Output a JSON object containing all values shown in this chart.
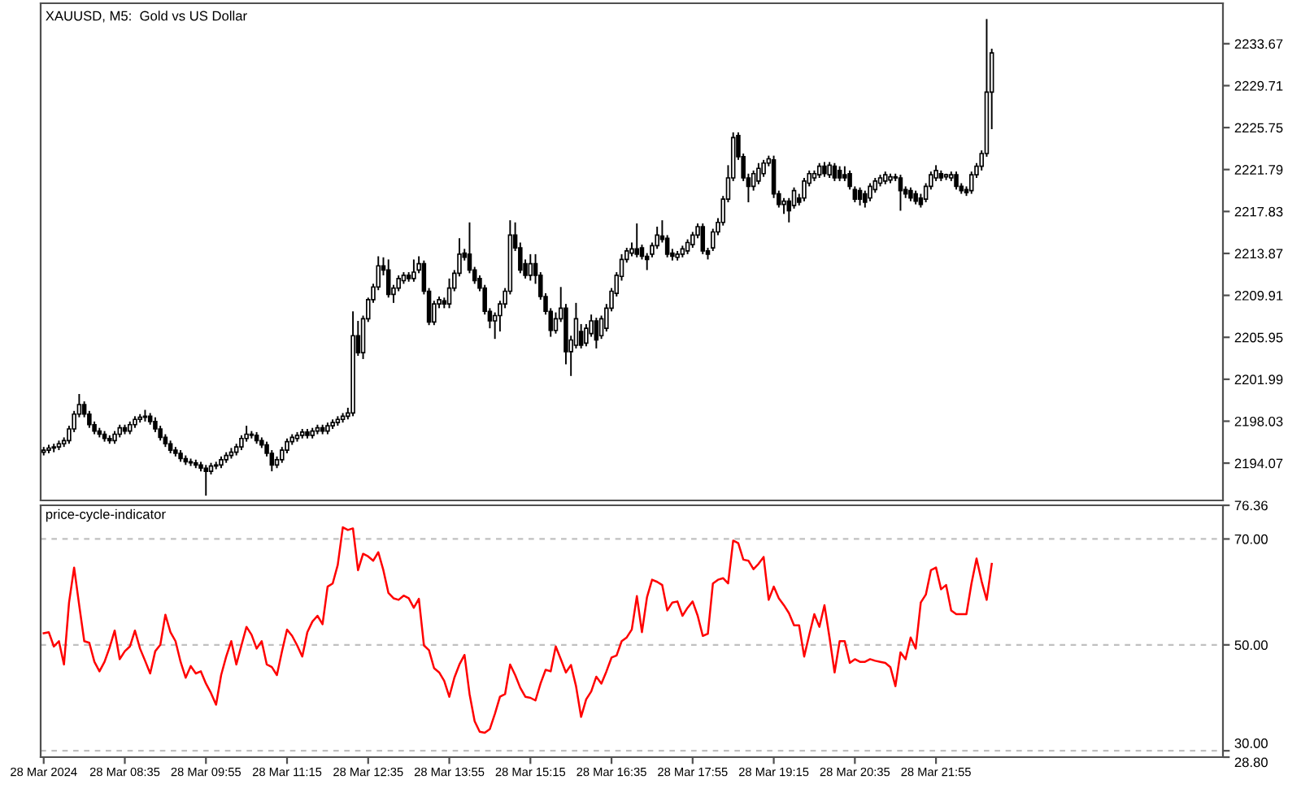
{
  "chart_data": [
    {
      "type": "candlestick",
      "title": "XAUUSD, M5:  Gold vs US Dollar",
      "color": "#000000",
      "tick_labels": "y",
      "xlim": [
        "2024-03-28T07:12",
        "2024-03-29T02:38"
      ],
      "ylim": [
        2190.55,
        2237.49
      ],
      "yticks": [
        2194.07,
        2198.03,
        2201.99,
        2205.95,
        2209.91,
        2213.87,
        2217.83,
        2221.79,
        2225.75,
        2229.71,
        2233.67
      ],
      "x": [
        "2024-03-28T07:15",
        "2024-03-28T07:20",
        "2024-03-28T07:25",
        "2024-03-28T07:30",
        "2024-03-28T07:35",
        "2024-03-28T07:40",
        "2024-03-28T07:45",
        "2024-03-28T07:50",
        "2024-03-28T07:55",
        "2024-03-28T08:00",
        "2024-03-28T08:05",
        "2024-03-28T08:10",
        "2024-03-28T08:15",
        "2024-03-28T08:20",
        "2024-03-28T08:25",
        "2024-03-28T08:30",
        "2024-03-28T08:35",
        "2024-03-28T08:40",
        "2024-03-28T08:45",
        "2024-03-28T08:50",
        "2024-03-28T08:55",
        "2024-03-28T09:00",
        "2024-03-28T09:05",
        "2024-03-28T09:10",
        "2024-03-28T09:15",
        "2024-03-28T09:20",
        "2024-03-28T09:25",
        "2024-03-28T09:30",
        "2024-03-28T09:35",
        "2024-03-28T09:40",
        "2024-03-28T09:45",
        "2024-03-28T09:50",
        "2024-03-28T09:55",
        "2024-03-28T10:00",
        "2024-03-28T10:05",
        "2024-03-28T10:10",
        "2024-03-28T10:15",
        "2024-03-28T10:20",
        "2024-03-28T10:25",
        "2024-03-28T10:30",
        "2024-03-28T10:35",
        "2024-03-28T10:40",
        "2024-03-28T10:45",
        "2024-03-28T10:50",
        "2024-03-28T10:55",
        "2024-03-28T11:00",
        "2024-03-28T11:05",
        "2024-03-28T11:10",
        "2024-03-28T11:15",
        "2024-03-28T11:20",
        "2024-03-28T11:25",
        "2024-03-28T11:30",
        "2024-03-28T11:35",
        "2024-03-28T11:40",
        "2024-03-28T11:45",
        "2024-03-28T11:50",
        "2024-03-28T11:55",
        "2024-03-28T12:00",
        "2024-03-28T12:05",
        "2024-03-28T12:10",
        "2024-03-28T12:15",
        "2024-03-28T12:20",
        "2024-03-28T12:25",
        "2024-03-28T12:30",
        "2024-03-28T12:35",
        "2024-03-28T12:40",
        "2024-03-28T12:45",
        "2024-03-28T12:50",
        "2024-03-28T12:55",
        "2024-03-28T13:00",
        "2024-03-28T13:05",
        "2024-03-28T13:10",
        "2024-03-28T13:15",
        "2024-03-28T13:20",
        "2024-03-28T13:25",
        "2024-03-28T13:30",
        "2024-03-28T13:35",
        "2024-03-28T13:40",
        "2024-03-28T13:45",
        "2024-03-28T13:50",
        "2024-03-28T13:55",
        "2024-03-28T14:00",
        "2024-03-28T14:05",
        "2024-03-28T14:10",
        "2024-03-28T14:15",
        "2024-03-28T14:20",
        "2024-03-28T14:25",
        "2024-03-28T14:30",
        "2024-03-28T14:35",
        "2024-03-28T14:40",
        "2024-03-28T14:45",
        "2024-03-28T14:50",
        "2024-03-28T14:55",
        "2024-03-28T15:00",
        "2024-03-28T15:05",
        "2024-03-28T15:10",
        "2024-03-28T15:15",
        "2024-03-28T15:20",
        "2024-03-28T15:25",
        "2024-03-28T15:30",
        "2024-03-28T15:35",
        "2024-03-28T15:40",
        "2024-03-28T15:45",
        "2024-03-28T15:50",
        "2024-03-28T15:55",
        "2024-03-28T16:00",
        "2024-03-28T16:05",
        "2024-03-28T16:10",
        "2024-03-28T16:15",
        "2024-03-28T16:20",
        "2024-03-28T16:25",
        "2024-03-28T16:30",
        "2024-03-28T16:35",
        "2024-03-28T16:40",
        "2024-03-28T16:45",
        "2024-03-28T16:50",
        "2024-03-28T16:55",
        "2024-03-28T17:00",
        "2024-03-28T17:05",
        "2024-03-28T17:10",
        "2024-03-28T17:15",
        "2024-03-28T17:20",
        "2024-03-28T17:25",
        "2024-03-28T17:30",
        "2024-03-28T17:35",
        "2024-03-28T17:40",
        "2024-03-28T17:45",
        "2024-03-28T17:50",
        "2024-03-28T17:55",
        "2024-03-28T18:00",
        "2024-03-28T18:05",
        "2024-03-28T18:10",
        "2024-03-28T18:15",
        "2024-03-28T18:20",
        "2024-03-28T18:25",
        "2024-03-28T18:30",
        "2024-03-28T18:35",
        "2024-03-28T18:40",
        "2024-03-28T18:45",
        "2024-03-28T18:50",
        "2024-03-28T18:55",
        "2024-03-28T19:00",
        "2024-03-28T19:05",
        "2024-03-28T19:10",
        "2024-03-28T19:15",
        "2024-03-28T19:20",
        "2024-03-28T19:25",
        "2024-03-28T19:30",
        "2024-03-28T19:35",
        "2024-03-28T19:40",
        "2024-03-28T19:45",
        "2024-03-28T19:50",
        "2024-03-28T19:55",
        "2024-03-28T20:00",
        "2024-03-28T20:05",
        "2024-03-28T20:10",
        "2024-03-28T20:15",
        "2024-03-28T20:20",
        "2024-03-28T20:25",
        "2024-03-28T20:30",
        "2024-03-28T20:35",
        "2024-03-28T20:40",
        "2024-03-28T20:45",
        "2024-03-28T20:50",
        "2024-03-28T20:55",
        "2024-03-28T21:00",
        "2024-03-28T21:05",
        "2024-03-28T21:10",
        "2024-03-28T21:15",
        "2024-03-28T21:20",
        "2024-03-28T21:25",
        "2024-03-28T21:30",
        "2024-03-28T21:35",
        "2024-03-28T21:40",
        "2024-03-28T21:45",
        "2024-03-28T21:50",
        "2024-03-28T21:55",
        "2024-03-28T22:00",
        "2024-03-28T22:05",
        "2024-03-28T22:10",
        "2024-03-28T22:15",
        "2024-03-28T22:20",
        "2024-03-28T22:25",
        "2024-03-28T22:30",
        "2024-03-28T22:35",
        "2024-03-28T22:40",
        "2024-03-28T22:45",
        "2024-03-28T22:50"
      ],
      "ohlc": [
        [
          2195.1,
          2195.6,
          2194.8,
          2195.3
        ],
        [
          2195.3,
          2195.8,
          2195.0,
          2195.5
        ],
        [
          2195.5,
          2195.9,
          2195.1,
          2195.6
        ],
        [
          2195.6,
          2196.2,
          2195.3,
          2195.9
        ],
        [
          2195.9,
          2196.5,
          2195.6,
          2196.2
        ],
        [
          2196.2,
          2197.6,
          2195.9,
          2197.3
        ],
        [
          2197.3,
          2199.0,
          2197.0,
          2198.7
        ],
        [
          2198.7,
          2200.6,
          2198.4,
          2199.6
        ],
        [
          2199.6,
          2199.9,
          2198.4,
          2198.7
        ],
        [
          2198.7,
          2199.0,
          2197.4,
          2197.7
        ],
        [
          2197.7,
          2198.0,
          2196.8,
          2197.1
        ],
        [
          2197.1,
          2197.4,
          2196.5,
          2196.8
        ],
        [
          2196.8,
          2197.1,
          2196.1,
          2196.4
        ],
        [
          2196.4,
          2196.7,
          2195.9,
          2196.2
        ],
        [
          2196.2,
          2197.1,
          2195.9,
          2196.8
        ],
        [
          2196.8,
          2197.7,
          2196.5,
          2197.4
        ],
        [
          2197.4,
          2197.7,
          2196.8,
          2197.1
        ],
        [
          2197.1,
          2198.0,
          2196.8,
          2197.7
        ],
        [
          2197.7,
          2198.5,
          2197.4,
          2198.2
        ],
        [
          2198.2,
          2198.7,
          2197.9,
          2198.4
        ],
        [
          2198.4,
          2199.1,
          2198.0,
          2198.5
        ],
        [
          2198.5,
          2198.8,
          2197.7,
          2198.0
        ],
        [
          2198.0,
          2198.4,
          2197.0,
          2197.3
        ],
        [
          2197.3,
          2197.6,
          2196.2,
          2196.5
        ],
        [
          2196.5,
          2196.8,
          2195.6,
          2195.9
        ],
        [
          2195.9,
          2196.2,
          2195.0,
          2195.3
        ],
        [
          2195.3,
          2195.6,
          2194.7,
          2195.0
        ],
        [
          2195.0,
          2195.3,
          2194.2,
          2194.5
        ],
        [
          2194.5,
          2194.8,
          2193.9,
          2194.2
        ],
        [
          2194.2,
          2194.5,
          2193.8,
          2194.1
        ],
        [
          2194.1,
          2194.4,
          2193.6,
          2193.9
        ],
        [
          2193.9,
          2194.2,
          2193.3,
          2193.6
        ],
        [
          2193.6,
          2193.9,
          2191.0,
          2193.3
        ],
        [
          2193.3,
          2194.1,
          2193.0,
          2193.8
        ],
        [
          2193.8,
          2194.2,
          2193.5,
          2193.9
        ],
        [
          2193.9,
          2194.7,
          2193.6,
          2194.4
        ],
        [
          2194.4,
          2195.1,
          2194.1,
          2194.8
        ],
        [
          2194.8,
          2195.5,
          2194.5,
          2195.1
        ],
        [
          2195.1,
          2195.9,
          2194.8,
          2195.6
        ],
        [
          2195.6,
          2196.7,
          2195.3,
          2196.4
        ],
        [
          2196.4,
          2197.6,
          2196.1,
          2196.8
        ],
        [
          2196.8,
          2197.1,
          2196.4,
          2196.7
        ],
        [
          2196.7,
          2197.0,
          2195.9,
          2196.2
        ],
        [
          2196.2,
          2196.5,
          2195.5,
          2195.8
        ],
        [
          2195.8,
          2196.1,
          2194.7,
          2195.0
        ],
        [
          2195.0,
          2195.3,
          2193.3,
          2193.9
        ],
        [
          2193.9,
          2194.7,
          2193.6,
          2194.4
        ],
        [
          2194.4,
          2195.6,
          2194.1,
          2195.3
        ],
        [
          2195.3,
          2196.4,
          2195.0,
          2196.1
        ],
        [
          2196.1,
          2196.8,
          2195.8,
          2196.5
        ],
        [
          2196.4,
          2197.0,
          2196.1,
          2196.7
        ],
        [
          2196.7,
          2197.3,
          2196.4,
          2197.0
        ],
        [
          2197.0,
          2197.3,
          2196.4,
          2196.7
        ],
        [
          2196.7,
          2197.4,
          2196.4,
          2197.1
        ],
        [
          2197.1,
          2197.7,
          2196.8,
          2197.4
        ],
        [
          2197.4,
          2197.7,
          2196.8,
          2197.1
        ],
        [
          2197.1,
          2197.9,
          2196.8,
          2197.6
        ],
        [
          2197.6,
          2198.2,
          2197.3,
          2197.9
        ],
        [
          2197.9,
          2198.5,
          2197.6,
          2198.2
        ],
        [
          2198.2,
          2198.8,
          2197.9,
          2198.5
        ],
        [
          2198.5,
          2199.3,
          2198.2,
          2198.8
        ],
        [
          2198.8,
          2208.4,
          2198.5,
          2206.1
        ],
        [
          2206.1,
          2207.5,
          2204.2,
          2204.5
        ],
        [
          2204.5,
          2208.0,
          2203.9,
          2207.7
        ],
        [
          2207.7,
          2209.7,
          2207.4,
          2209.5
        ],
        [
          2209.5,
          2211.0,
          2209.2,
          2210.7
        ],
        [
          2210.7,
          2213.6,
          2210.4,
          2212.7
        ],
        [
          2212.7,
          2213.5,
          2211.8,
          2212.3
        ],
        [
          2212.3,
          2213.3,
          2209.7,
          2210.0
        ],
        [
          2210.0,
          2210.9,
          2209.2,
          2210.6
        ],
        [
          2210.6,
          2211.8,
          2210.3,
          2211.5
        ],
        [
          2211.3,
          2212.1,
          2211.0,
          2211.8
        ],
        [
          2211.8,
          2212.1,
          2211.2,
          2211.5
        ],
        [
          2211.5,
          2213.3,
          2211.2,
          2212.1
        ],
        [
          2212.3,
          2213.6,
          2212.0,
          2212.9
        ],
        [
          2212.9,
          2213.2,
          2210.0,
          2210.3
        ],
        [
          2210.3,
          2210.6,
          2207.1,
          2207.4
        ],
        [
          2207.4,
          2209.4,
          2207.1,
          2209.1
        ],
        [
          2209.1,
          2209.8,
          2208.7,
          2209.5
        ],
        [
          2209.4,
          2209.7,
          2208.7,
          2209.1
        ],
        [
          2209.1,
          2211.5,
          2208.7,
          2210.6
        ],
        [
          2210.6,
          2212.3,
          2210.3,
          2212.0
        ],
        [
          2212.0,
          2215.3,
          2211.7,
          2213.8
        ],
        [
          2213.9,
          2214.3,
          2213.2,
          2213.5
        ],
        [
          2213.8,
          2216.8,
          2212.0,
          2212.3
        ],
        [
          2212.3,
          2212.6,
          2211.0,
          2211.3
        ],
        [
          2211.5,
          2211.8,
          2210.3,
          2210.6
        ],
        [
          2210.6,
          2210.9,
          2208.1,
          2208.4
        ],
        [
          2208.4,
          2208.7,
          2206.8,
          2207.5
        ],
        [
          2207.5,
          2208.3,
          2205.8,
          2208.0
        ],
        [
          2208.0,
          2209.4,
          2206.5,
          2209.1
        ],
        [
          2209.1,
          2210.6,
          2208.7,
          2210.3
        ],
        [
          2210.3,
          2217.0,
          2210.0,
          2215.6
        ],
        [
          2215.6,
          2216.8,
          2214.1,
          2214.4
        ],
        [
          2214.4,
          2214.9,
          2212.0,
          2212.3
        ],
        [
          2212.9,
          2213.3,
          2211.5,
          2211.8
        ],
        [
          2211.8,
          2213.8,
          2211.3,
          2212.9
        ],
        [
          2212.9,
          2213.8,
          2211.0,
          2211.8
        ],
        [
          2211.8,
          2212.1,
          2209.5,
          2209.8
        ],
        [
          2209.8,
          2210.1,
          2208.1,
          2208.4
        ],
        [
          2208.4,
          2208.7,
          2206.0,
          2206.6
        ],
        [
          2206.6,
          2208.3,
          2206.3,
          2207.7
        ],
        [
          2207.7,
          2210.7,
          2207.4,
          2208.7
        ],
        [
          2208.7,
          2209.1,
          2203.4,
          2204.6
        ],
        [
          2204.6,
          2206.1,
          2202.3,
          2205.7
        ],
        [
          2205.2,
          2209.2,
          2204.9,
          2207.7
        ],
        [
          2206.5,
          2207.2,
          2204.9,
          2205.2
        ],
        [
          2205.4,
          2207.2,
          2205.1,
          2206.8
        ],
        [
          2206.3,
          2208.1,
          2206.0,
          2207.5
        ],
        [
          2207.5,
          2207.8,
          2204.9,
          2205.7
        ],
        [
          2206.1,
          2208.0,
          2205.8,
          2207.7
        ],
        [
          2206.8,
          2209.1,
          2206.5,
          2208.7
        ],
        [
          2208.7,
          2210.6,
          2208.4,
          2210.3
        ],
        [
          2210.1,
          2212.1,
          2209.8,
          2211.8
        ],
        [
          2211.7,
          2213.8,
          2211.3,
          2213.3
        ],
        [
          2213.3,
          2214.4,
          2213.0,
          2214.1
        ],
        [
          2213.9,
          2214.9,
          2213.6,
          2214.3
        ],
        [
          2214.3,
          2216.7,
          2213.5,
          2213.8
        ],
        [
          2214.4,
          2214.7,
          2213.3,
          2213.6
        ],
        [
          2213.6,
          2213.9,
          2212.3,
          2213.3
        ],
        [
          2213.8,
          2214.9,
          2213.5,
          2214.6
        ],
        [
          2214.6,
          2216.4,
          2214.3,
          2215.6
        ],
        [
          2215.5,
          2217.0,
          2214.9,
          2215.2
        ],
        [
          2215.3,
          2215.6,
          2213.5,
          2213.8
        ],
        [
          2213.9,
          2214.3,
          2213.2,
          2213.6
        ],
        [
          2213.5,
          2214.1,
          2213.2,
          2213.8
        ],
        [
          2213.8,
          2214.6,
          2213.5,
          2214.3
        ],
        [
          2214.1,
          2215.2,
          2213.8,
          2214.9
        ],
        [
          2214.7,
          2215.9,
          2214.4,
          2215.6
        ],
        [
          2215.6,
          2216.7,
          2215.3,
          2216.4
        ],
        [
          2216.4,
          2216.7,
          2213.8,
          2214.1
        ],
        [
          2214.1,
          2214.4,
          2213.3,
          2213.8
        ],
        [
          2214.4,
          2216.2,
          2214.1,
          2215.9
        ],
        [
          2215.9,
          2217.2,
          2215.6,
          2216.8
        ],
        [
          2216.8,
          2219.3,
          2216.5,
          2219.0
        ],
        [
          2219.0,
          2222.2,
          2218.7,
          2221.0
        ],
        [
          2221.0,
          2225.3,
          2220.7,
          2224.8
        ],
        [
          2225.0,
          2225.3,
          2222.7,
          2223.0
        ],
        [
          2223.0,
          2223.3,
          2220.7,
          2221.0
        ],
        [
          2221.0,
          2221.4,
          2218.7,
          2220.2
        ],
        [
          2220.2,
          2221.7,
          2219.8,
          2221.4
        ],
        [
          2220.7,
          2222.4,
          2220.4,
          2221.9
        ],
        [
          2221.4,
          2222.7,
          2221.1,
          2222.4
        ],
        [
          2222.4,
          2223.1,
          2222.1,
          2222.8
        ],
        [
          2222.7,
          2223.1,
          2219.1,
          2219.5
        ],
        [
          2219.5,
          2219.8,
          2218.2,
          2218.5
        ],
        [
          2218.5,
          2219.1,
          2217.6,
          2218.8
        ],
        [
          2218.8,
          2219.1,
          2216.8,
          2217.9
        ],
        [
          2218.4,
          2220.1,
          2218.1,
          2219.8
        ],
        [
          2219.1,
          2219.5,
          2218.4,
          2218.7
        ],
        [
          2219.1,
          2221.0,
          2218.8,
          2220.7
        ],
        [
          2220.5,
          2221.7,
          2220.2,
          2221.4
        ],
        [
          2221.0,
          2221.7,
          2220.7,
          2221.4
        ],
        [
          2221.3,
          2222.4,
          2221.0,
          2222.1
        ],
        [
          2222.1,
          2222.5,
          2221.1,
          2221.4
        ],
        [
          2221.3,
          2222.5,
          2221.0,
          2222.2
        ],
        [
          2222.1,
          2222.4,
          2220.7,
          2221.0
        ],
        [
          2221.7,
          2222.1,
          2220.7,
          2221.0
        ],
        [
          2221.3,
          2222.1,
          2220.7,
          2221.0
        ],
        [
          2221.4,
          2221.7,
          2219.9,
          2220.2
        ],
        [
          2219.9,
          2220.2,
          2218.7,
          2219.0
        ],
        [
          2219.8,
          2220.1,
          2218.4,
          2219.0
        ],
        [
          2219.5,
          2219.8,
          2218.2,
          2218.7
        ],
        [
          2219.1,
          2220.5,
          2218.8,
          2220.2
        ],
        [
          2219.9,
          2221.0,
          2219.6,
          2220.7
        ],
        [
          2220.5,
          2221.3,
          2220.2,
          2221.0
        ],
        [
          2220.7,
          2221.6,
          2220.4,
          2221.3
        ],
        [
          2220.8,
          2221.4,
          2220.5,
          2221.1
        ],
        [
          2221.0,
          2221.4,
          2220.7,
          2221.1
        ],
        [
          2221.0,
          2221.3,
          2217.9,
          2219.8
        ],
        [
          2219.9,
          2220.2,
          2219.1,
          2219.5
        ],
        [
          2219.8,
          2220.1,
          2218.8,
          2219.1
        ],
        [
          2219.5,
          2219.8,
          2218.5,
          2218.8
        ],
        [
          2219.1,
          2219.5,
          2218.2,
          2218.5
        ],
        [
          2219.0,
          2220.5,
          2218.7,
          2220.2
        ],
        [
          2220.2,
          2221.6,
          2219.9,
          2221.3
        ],
        [
          2221.0,
          2222.2,
          2220.7,
          2221.7
        ],
        [
          2221.4,
          2221.7,
          2220.7,
          2221.0
        ],
        [
          2221.1,
          2221.4,
          2220.8,
          2221.3
        ],
        [
          2221.0,
          2221.6,
          2220.7,
          2221.3
        ],
        [
          2221.3,
          2221.6,
          2219.9,
          2220.2
        ],
        [
          2220.2,
          2220.5,
          2219.5,
          2219.8
        ],
        [
          2219.9,
          2220.2,
          2219.3,
          2219.6
        ],
        [
          2219.8,
          2221.6,
          2219.5,
          2221.3
        ],
        [
          2221.3,
          2222.4,
          2221.0,
          2222.1
        ],
        [
          2222.1,
          2223.6,
          2221.7,
          2223.3
        ],
        [
          2223.3,
          2236.0,
          2223.0,
          2229.1
        ],
        [
          2229.1,
          2233.2,
          2225.6,
          2232.8
        ]
      ]
    },
    {
      "type": "line",
      "title": "price-cycle-indicator",
      "color": "#ff0000",
      "xlim": [
        "2024-03-28T07:12",
        "2024-03-29T02:38"
      ],
      "ylim": [
        28.8,
        76.36
      ],
      "xticks": [
        {
          "value": "2024-03-28T07:15",
          "label": "28 Mar 2024"
        },
        {
          "value": "2024-03-28T08:35",
          "label": "28 Mar 08:35"
        },
        {
          "value": "2024-03-28T09:55",
          "label": "28 Mar 09:55"
        },
        {
          "value": "2024-03-28T11:15",
          "label": "28 Mar 11:15"
        },
        {
          "value": "2024-03-28T12:35",
          "label": "28 Mar 12:35"
        },
        {
          "value": "2024-03-28T13:55",
          "label": "28 Mar 13:55"
        },
        {
          "value": "2024-03-28T15:15",
          "label": "28 Mar 15:15"
        },
        {
          "value": "2024-03-28T16:35",
          "label": "28 Mar 16:35"
        },
        {
          "value": "2024-03-28T17:55",
          "label": "28 Mar 17:55"
        },
        {
          "value": "2024-03-28T19:15",
          "label": "28 Mar 19:15"
        },
        {
          "value": "2024-03-28T20:35",
          "label": "28 Mar 20:35"
        },
        {
          "value": "2024-03-28T21:55",
          "label": "28 Mar 21:55"
        }
      ],
      "yticks": [
        76.36,
        {
          "value": 70,
          "label": "70.00"
        },
        {
          "value": 50,
          "label": "50.00"
        },
        {
          "value": 30,
          "label": "30.00"
        },
        {
          "value": 28.8,
          "label": "28.80"
        }
      ],
      "ref_lines": [
        {
          "axis": "y",
          "value": 70,
          "color": "#c0c0c0",
          "line_style": "dashed"
        },
        {
          "axis": "y",
          "value": 50,
          "color": "#c0c0c0",
          "line_style": "dashed"
        },
        {
          "axis": "y",
          "value": 30,
          "color": "#c0c0c0",
          "line_style": "dashed"
        }
      ],
      "x": [
        "2024-03-28T07:15",
        "2024-03-28T07:20",
        "2024-03-28T07:25",
        "2024-03-28T07:30",
        "2024-03-28T07:35",
        "2024-03-28T07:40",
        "2024-03-28T07:45",
        "2024-03-28T07:50",
        "2024-03-28T07:55",
        "2024-03-28T08:00",
        "2024-03-28T08:05",
        "2024-03-28T08:10",
        "2024-03-28T08:15",
        "2024-03-28T08:20",
        "2024-03-28T08:25",
        "2024-03-28T08:30",
        "2024-03-28T08:35",
        "2024-03-28T08:40",
        "2024-03-28T08:45",
        "2024-03-28T08:50",
        "2024-03-28T08:55",
        "2024-03-28T09:00",
        "2024-03-28T09:05",
        "2024-03-28T09:10",
        "2024-03-28T09:15",
        "2024-03-28T09:20",
        "2024-03-28T09:25",
        "2024-03-28T09:30",
        "2024-03-28T09:35",
        "2024-03-28T09:40",
        "2024-03-28T09:45",
        "2024-03-28T09:50",
        "2024-03-28T09:55",
        "2024-03-28T10:00",
        "2024-03-28T10:05",
        "2024-03-28T10:10",
        "2024-03-28T10:15",
        "2024-03-28T10:20",
        "2024-03-28T10:25",
        "2024-03-28T10:30",
        "2024-03-28T10:35",
        "2024-03-28T10:40",
        "2024-03-28T10:45",
        "2024-03-28T10:50",
        "2024-03-28T10:55",
        "2024-03-28T11:00",
        "2024-03-28T11:05",
        "2024-03-28T11:10",
        "2024-03-28T11:15",
        "2024-03-28T11:20",
        "2024-03-28T11:25",
        "2024-03-28T11:30",
        "2024-03-28T11:35",
        "2024-03-28T11:40",
        "2024-03-28T11:45",
        "2024-03-28T11:50",
        "2024-03-28T11:55",
        "2024-03-28T12:00",
        "2024-03-28T12:05",
        "2024-03-28T12:10",
        "2024-03-28T12:15",
        "2024-03-28T12:20",
        "2024-03-28T12:25",
        "2024-03-28T12:30",
        "2024-03-28T12:35",
        "2024-03-28T12:40",
        "2024-03-28T12:45",
        "2024-03-28T12:50",
        "2024-03-28T12:55",
        "2024-03-28T13:00",
        "2024-03-28T13:05",
        "2024-03-28T13:10",
        "2024-03-28T13:15",
        "2024-03-28T13:20",
        "2024-03-28T13:25",
        "2024-03-28T13:30",
        "2024-03-28T13:35",
        "2024-03-28T13:40",
        "2024-03-28T13:45",
        "2024-03-28T13:50",
        "2024-03-28T13:55",
        "2024-03-28T14:00",
        "2024-03-28T14:05",
        "2024-03-28T14:10",
        "2024-03-28T14:15",
        "2024-03-28T14:20",
        "2024-03-28T14:25",
        "2024-03-28T14:30",
        "2024-03-28T14:35",
        "2024-03-28T14:40",
        "2024-03-28T14:45",
        "2024-03-28T14:50",
        "2024-03-28T14:55",
        "2024-03-28T15:00",
        "2024-03-28T15:05",
        "2024-03-28T15:10",
        "2024-03-28T15:15",
        "2024-03-28T15:20",
        "2024-03-28T15:25",
        "2024-03-28T15:30",
        "2024-03-28T15:35",
        "2024-03-28T15:40",
        "2024-03-28T15:45",
        "2024-03-28T15:50",
        "2024-03-28T15:55",
        "2024-03-28T16:00",
        "2024-03-28T16:05",
        "2024-03-28T16:10",
        "2024-03-28T16:15",
        "2024-03-28T16:20",
        "2024-03-28T16:25",
        "2024-03-28T16:30",
        "2024-03-28T16:35",
        "2024-03-28T16:40",
        "2024-03-28T16:45",
        "2024-03-28T16:50",
        "2024-03-28T16:55",
        "2024-03-28T17:00",
        "2024-03-28T17:05",
        "2024-03-28T17:10",
        "2024-03-28T17:15",
        "2024-03-28T17:20",
        "2024-03-28T17:25",
        "2024-03-28T17:30",
        "2024-03-28T17:35",
        "2024-03-28T17:40",
        "2024-03-28T17:45",
        "2024-03-28T17:50",
        "2024-03-28T17:55",
        "2024-03-28T18:00",
        "2024-03-28T18:05",
        "2024-03-28T18:10",
        "2024-03-28T18:15",
        "2024-03-28T18:20",
        "2024-03-28T18:25",
        "2024-03-28T18:30",
        "2024-03-28T18:35",
        "2024-03-28T18:40",
        "2024-03-28T18:45",
        "2024-03-28T18:50",
        "2024-03-28T18:55",
        "2024-03-28T19:00",
        "2024-03-28T19:05",
        "2024-03-28T19:10",
        "2024-03-28T19:15",
        "2024-03-28T19:20",
        "2024-03-28T19:25",
        "2024-03-28T19:30",
        "2024-03-28T19:35",
        "2024-03-28T19:40",
        "2024-03-28T19:45",
        "2024-03-28T19:50",
        "2024-03-28T19:55",
        "2024-03-28T20:00",
        "2024-03-28T20:05",
        "2024-03-28T20:10",
        "2024-03-28T20:15",
        "2024-03-28T20:20",
        "2024-03-28T20:25",
        "2024-03-28T20:30",
        "2024-03-28T20:35",
        "2024-03-28T20:40",
        "2024-03-28T20:45",
        "2024-03-28T20:50",
        "2024-03-28T20:55",
        "2024-03-28T21:00",
        "2024-03-28T21:05",
        "2024-03-28T21:10",
        "2024-03-28T21:15",
        "2024-03-28T21:20",
        "2024-03-28T21:25",
        "2024-03-28T21:30",
        "2024-03-28T21:35",
        "2024-03-28T21:40",
        "2024-03-28T21:45",
        "2024-03-28T21:50",
        "2024-03-28T21:55",
        "2024-03-28T22:00",
        "2024-03-28T22:05",
        "2024-03-28T22:10",
        "2024-03-28T22:15",
        "2024-03-28T22:20",
        "2024-03-28T22:25",
        "2024-03-28T22:30",
        "2024-03-28T22:35",
        "2024-03-28T22:40",
        "2024-03-28T22:45",
        "2024-03-28T22:50"
      ],
      "values": [
        52.2,
        52.4,
        49.7,
        50.7,
        46.3,
        58,
        64.6,
        57.5,
        50.7,
        50.4,
        46.8,
        45,
        46.8,
        49.5,
        52.7,
        47.3,
        48.8,
        49.7,
        52.7,
        49.3,
        47,
        44.6,
        48.8,
        50,
        55.7,
        52.4,
        50.7,
        46.8,
        43.8,
        46,
        44.6,
        45,
        42.7,
        40.9,
        38.7,
        44.3,
        47.8,
        50.7,
        46.3,
        49.9,
        53.4,
        51.9,
        49.3,
        50.7,
        46.3,
        45.8,
        44.3,
        48.8,
        52.9,
        51.7,
        49.9,
        47.8,
        52.4,
        54.4,
        55.5,
        53.9,
        61,
        61.6,
        65.1,
        72.2,
        71.7,
        72,
        64.1,
        67.2,
        66.7,
        65.9,
        67.5,
        64.1,
        59.8,
        58.8,
        58.5,
        59.3,
        58.8,
        57,
        58.7,
        49.9,
        49,
        45.6,
        44.8,
        43.2,
        40.2,
        43.8,
        46.3,
        48.1,
        40.7,
        35.6,
        33.6,
        33.4,
        34.1,
        37,
        40.2,
        40.7,
        46.3,
        44.3,
        41.9,
        40.2,
        40,
        39.5,
        42.7,
        45.3,
        45,
        49.7,
        47.3,
        44.8,
        46.2,
        42.2,
        36.4,
        39.7,
        41.2,
        44,
        42.7,
        45,
        47.6,
        48,
        50.7,
        51.4,
        52.9,
        59.2,
        52.4,
        59,
        62.3,
        61.9,
        61.3,
        56.5,
        58,
        58.2,
        55.5,
        57,
        58.2,
        55.5,
        51.7,
        52.1,
        61.6,
        62.3,
        62.6,
        61.6,
        69.7,
        69.2,
        66.1,
        65.9,
        64.3,
        65.3,
        66.6,
        58.5,
        61,
        58.8,
        57.5,
        56,
        53.7,
        53.7,
        47.8,
        51.9,
        55.8,
        53.4,
        57.5,
        51.4,
        44.8,
        50.7,
        50.7,
        46.6,
        47.3,
        46.8,
        46.8,
        47.3,
        47,
        46.8,
        46.6,
        45.8,
        42.2,
        48.6,
        47.3,
        51.4,
        49.3,
        58,
        59.5,
        64.1,
        64.6,
        60.5,
        61.3,
        56.5,
        55.8,
        55.8,
        55.8,
        61.6,
        66.3,
        62,
        58.5,
        65.3
      ]
    }
  ]
}
